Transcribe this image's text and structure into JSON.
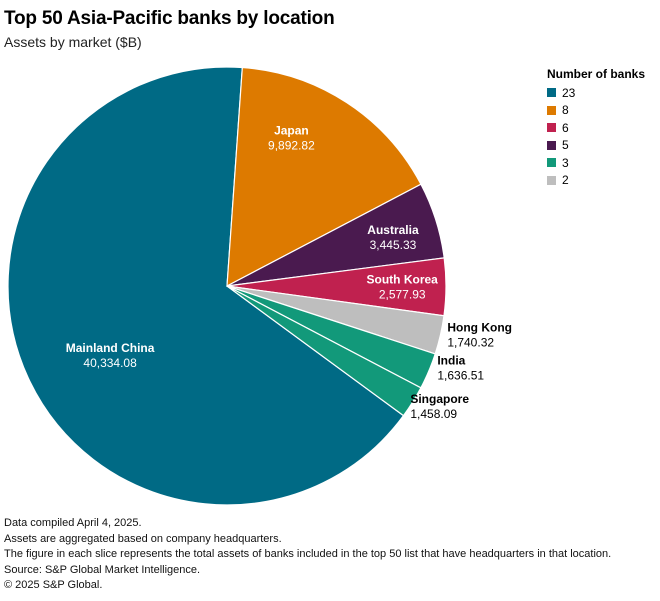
{
  "chart_data": {
    "type": "pie",
    "title": "Top 50 Asia-Pacific banks by location",
    "subtitle": "Assets by market ($B)",
    "slices": [
      {
        "label": "Mainland China",
        "value": 40334.08,
        "display": "40,334.08",
        "banks": 23,
        "color": "#006a85"
      },
      {
        "label": "Japan",
        "value": 9892.82,
        "display": "9,892.82",
        "banks": 8,
        "color": "#dd7a00"
      },
      {
        "label": "Australia",
        "value": 3445.33,
        "display": "3,445.33",
        "banks": 5,
        "color": "#4a1a4f"
      },
      {
        "label": "South Korea",
        "value": 2577.93,
        "display": "2,577.93",
        "banks": 6,
        "color": "#c0214f"
      },
      {
        "label": "Hong Kong",
        "value": 1740.32,
        "display": "1,740.32",
        "banks": 2,
        "color": "#bebebe"
      },
      {
        "label": "India",
        "value": 1636.51,
        "display": "1,636.51",
        "banks": 3,
        "color": "#12997a"
      },
      {
        "label": "Singapore",
        "value": 1458.09,
        "display": "1,458.09",
        "banks": 3,
        "color": "#12997a"
      }
    ],
    "legend": {
      "title": "Number of banks",
      "placement": "top-right",
      "items": [
        {
          "label": "23",
          "color": "#006a85"
        },
        {
          "label": "8",
          "color": "#dd7a00"
        },
        {
          "label": "6",
          "color": "#c0214f"
        },
        {
          "label": "5",
          "color": "#4a1a4f"
        },
        {
          "label": "3",
          "color": "#12997a"
        },
        {
          "label": "2",
          "color": "#bebebe"
        }
      ]
    }
  },
  "notes": [
    "Data compiled April 4, 2025.",
    "Assets are aggregated based on company headquarters.",
    "The figure in each slice represents the total assets of banks included in the top 50 list that have headquarters in that location.",
    "Source: S&P Global Market Intelligence.",
    "© 2025 S&P Global."
  ]
}
